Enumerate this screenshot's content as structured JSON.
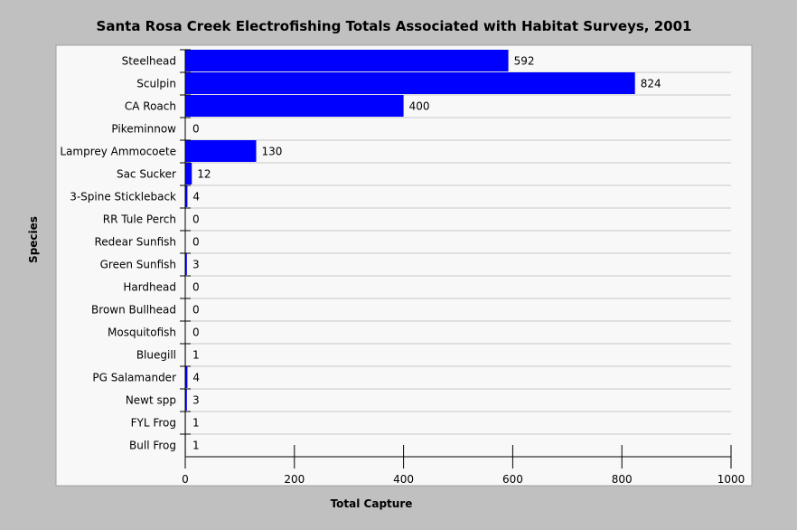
{
  "chart_data": {
    "type": "bar",
    "orientation": "horizontal",
    "title": "Santa Rosa Creek Electrofishing Totals Associated with Habitat Surveys, 2001",
    "xlabel": "Total Capture",
    "ylabel": "Species",
    "categories": [
      "Steelhead",
      "Sculpin",
      "CA Roach",
      "Pikeminnow",
      "Lamprey Ammocoete",
      "Sac Sucker",
      "3-Spine Stickleback",
      "RR Tule Perch",
      "Redear Sunfish",
      "Green Sunfish",
      "Hardhead",
      "Brown Bullhead",
      "Mosquitofish",
      "Bluegill",
      "PG Salamander",
      "Newt spp",
      "FYL Frog",
      "Bull Frog"
    ],
    "values": [
      592,
      824,
      400,
      0,
      130,
      12,
      4,
      0,
      0,
      3,
      0,
      0,
      0,
      1,
      4,
      3,
      1,
      1
    ],
    "xlim": [
      0,
      1000
    ],
    "xticks": [
      0,
      200,
      400,
      600,
      800,
      1000
    ],
    "grid": "horizontal",
    "bar_color": "#0000ff",
    "background_color": "#c0c0c0",
    "plot_background_color": "#f8f8f8"
  }
}
